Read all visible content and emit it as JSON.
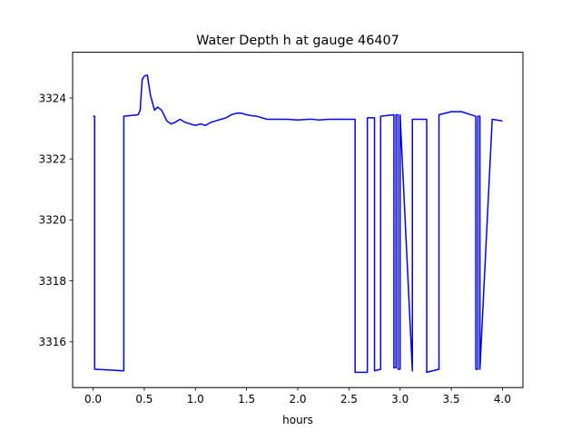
{
  "chart_data": {
    "type": "line",
    "title": "Water Depth h at gauge 46407",
    "xlabel": "hours",
    "ylabel": "",
    "xlim": [
      -0.2,
      4.2
    ],
    "ylim": [
      3314.5,
      3325.5
    ],
    "x_ticks": [
      0.0,
      0.5,
      1.0,
      1.5,
      2.0,
      2.5,
      3.0,
      3.5,
      4.0
    ],
    "x_tick_labels": [
      "0.0",
      "0.5",
      "1.0",
      "1.5",
      "2.0",
      "2.5",
      "3.0",
      "3.5",
      "4.0"
    ],
    "y_ticks": [
      3316,
      3318,
      3320,
      3322,
      3324
    ],
    "y_tick_labels": [
      "3316",
      "3318",
      "3320",
      "3322",
      "3324"
    ],
    "grid": false,
    "legend": "none",
    "line_color": "#0000ff",
    "series": [
      {
        "x": [
          0.0,
          0.015,
          0.015,
          0.3,
          0.3,
          0.44,
          0.46,
          0.48,
          0.5,
          0.53,
          0.56,
          0.6,
          0.63,
          0.67,
          0.72,
          0.76,
          0.8,
          0.85,
          0.9,
          0.95,
          1.0,
          1.05,
          1.1,
          1.15,
          1.2,
          1.25,
          1.3,
          1.35,
          1.4,
          1.45,
          1.5,
          1.55,
          1.6,
          1.65,
          1.7,
          1.8,
          1.9,
          2.0,
          2.1,
          2.15,
          2.2,
          2.3,
          2.4,
          2.5,
          2.56,
          2.56,
          2.68,
          2.68,
          2.75,
          2.75,
          2.81,
          2.81,
          2.94,
          2.94,
          2.96,
          2.96,
          2.98,
          2.98,
          3.0,
          3.0,
          3.12,
          3.12,
          3.26,
          3.26,
          3.38,
          3.38,
          3.5,
          3.6,
          3.74,
          3.74,
          3.76,
          3.76,
          3.78,
          3.78,
          3.9,
          4.0
        ],
        "y": [
          3323.4,
          3323.4,
          3315.1,
          3315.05,
          3323.4,
          3323.45,
          3323.6,
          3324.6,
          3324.72,
          3324.75,
          3324.1,
          3323.6,
          3323.7,
          3323.6,
          3323.25,
          3323.15,
          3323.2,
          3323.3,
          3323.2,
          3323.15,
          3323.1,
          3323.15,
          3323.1,
          3323.2,
          3323.25,
          3323.3,
          3323.35,
          3323.45,
          3323.5,
          3323.5,
          3323.45,
          3323.42,
          3323.4,
          3323.35,
          3323.3,
          3323.3,
          3323.3,
          3323.28,
          3323.3,
          3323.3,
          3323.28,
          3323.3,
          3323.3,
          3323.3,
          3323.3,
          3315.0,
          3315.0,
          3323.35,
          3323.35,
          3315.05,
          3315.1,
          3323.4,
          3323.45,
          3315.15,
          3315.15,
          3323.45,
          3323.45,
          3315.1,
          3315.1,
          3323.45,
          3315.05,
          3323.3,
          3323.3,
          3315.0,
          3315.1,
          3323.45,
          3323.55,
          3323.55,
          3323.4,
          3315.1,
          3315.1,
          3323.4,
          3323.4,
          3315.1,
          3323.3,
          3323.25
        ]
      }
    ]
  }
}
